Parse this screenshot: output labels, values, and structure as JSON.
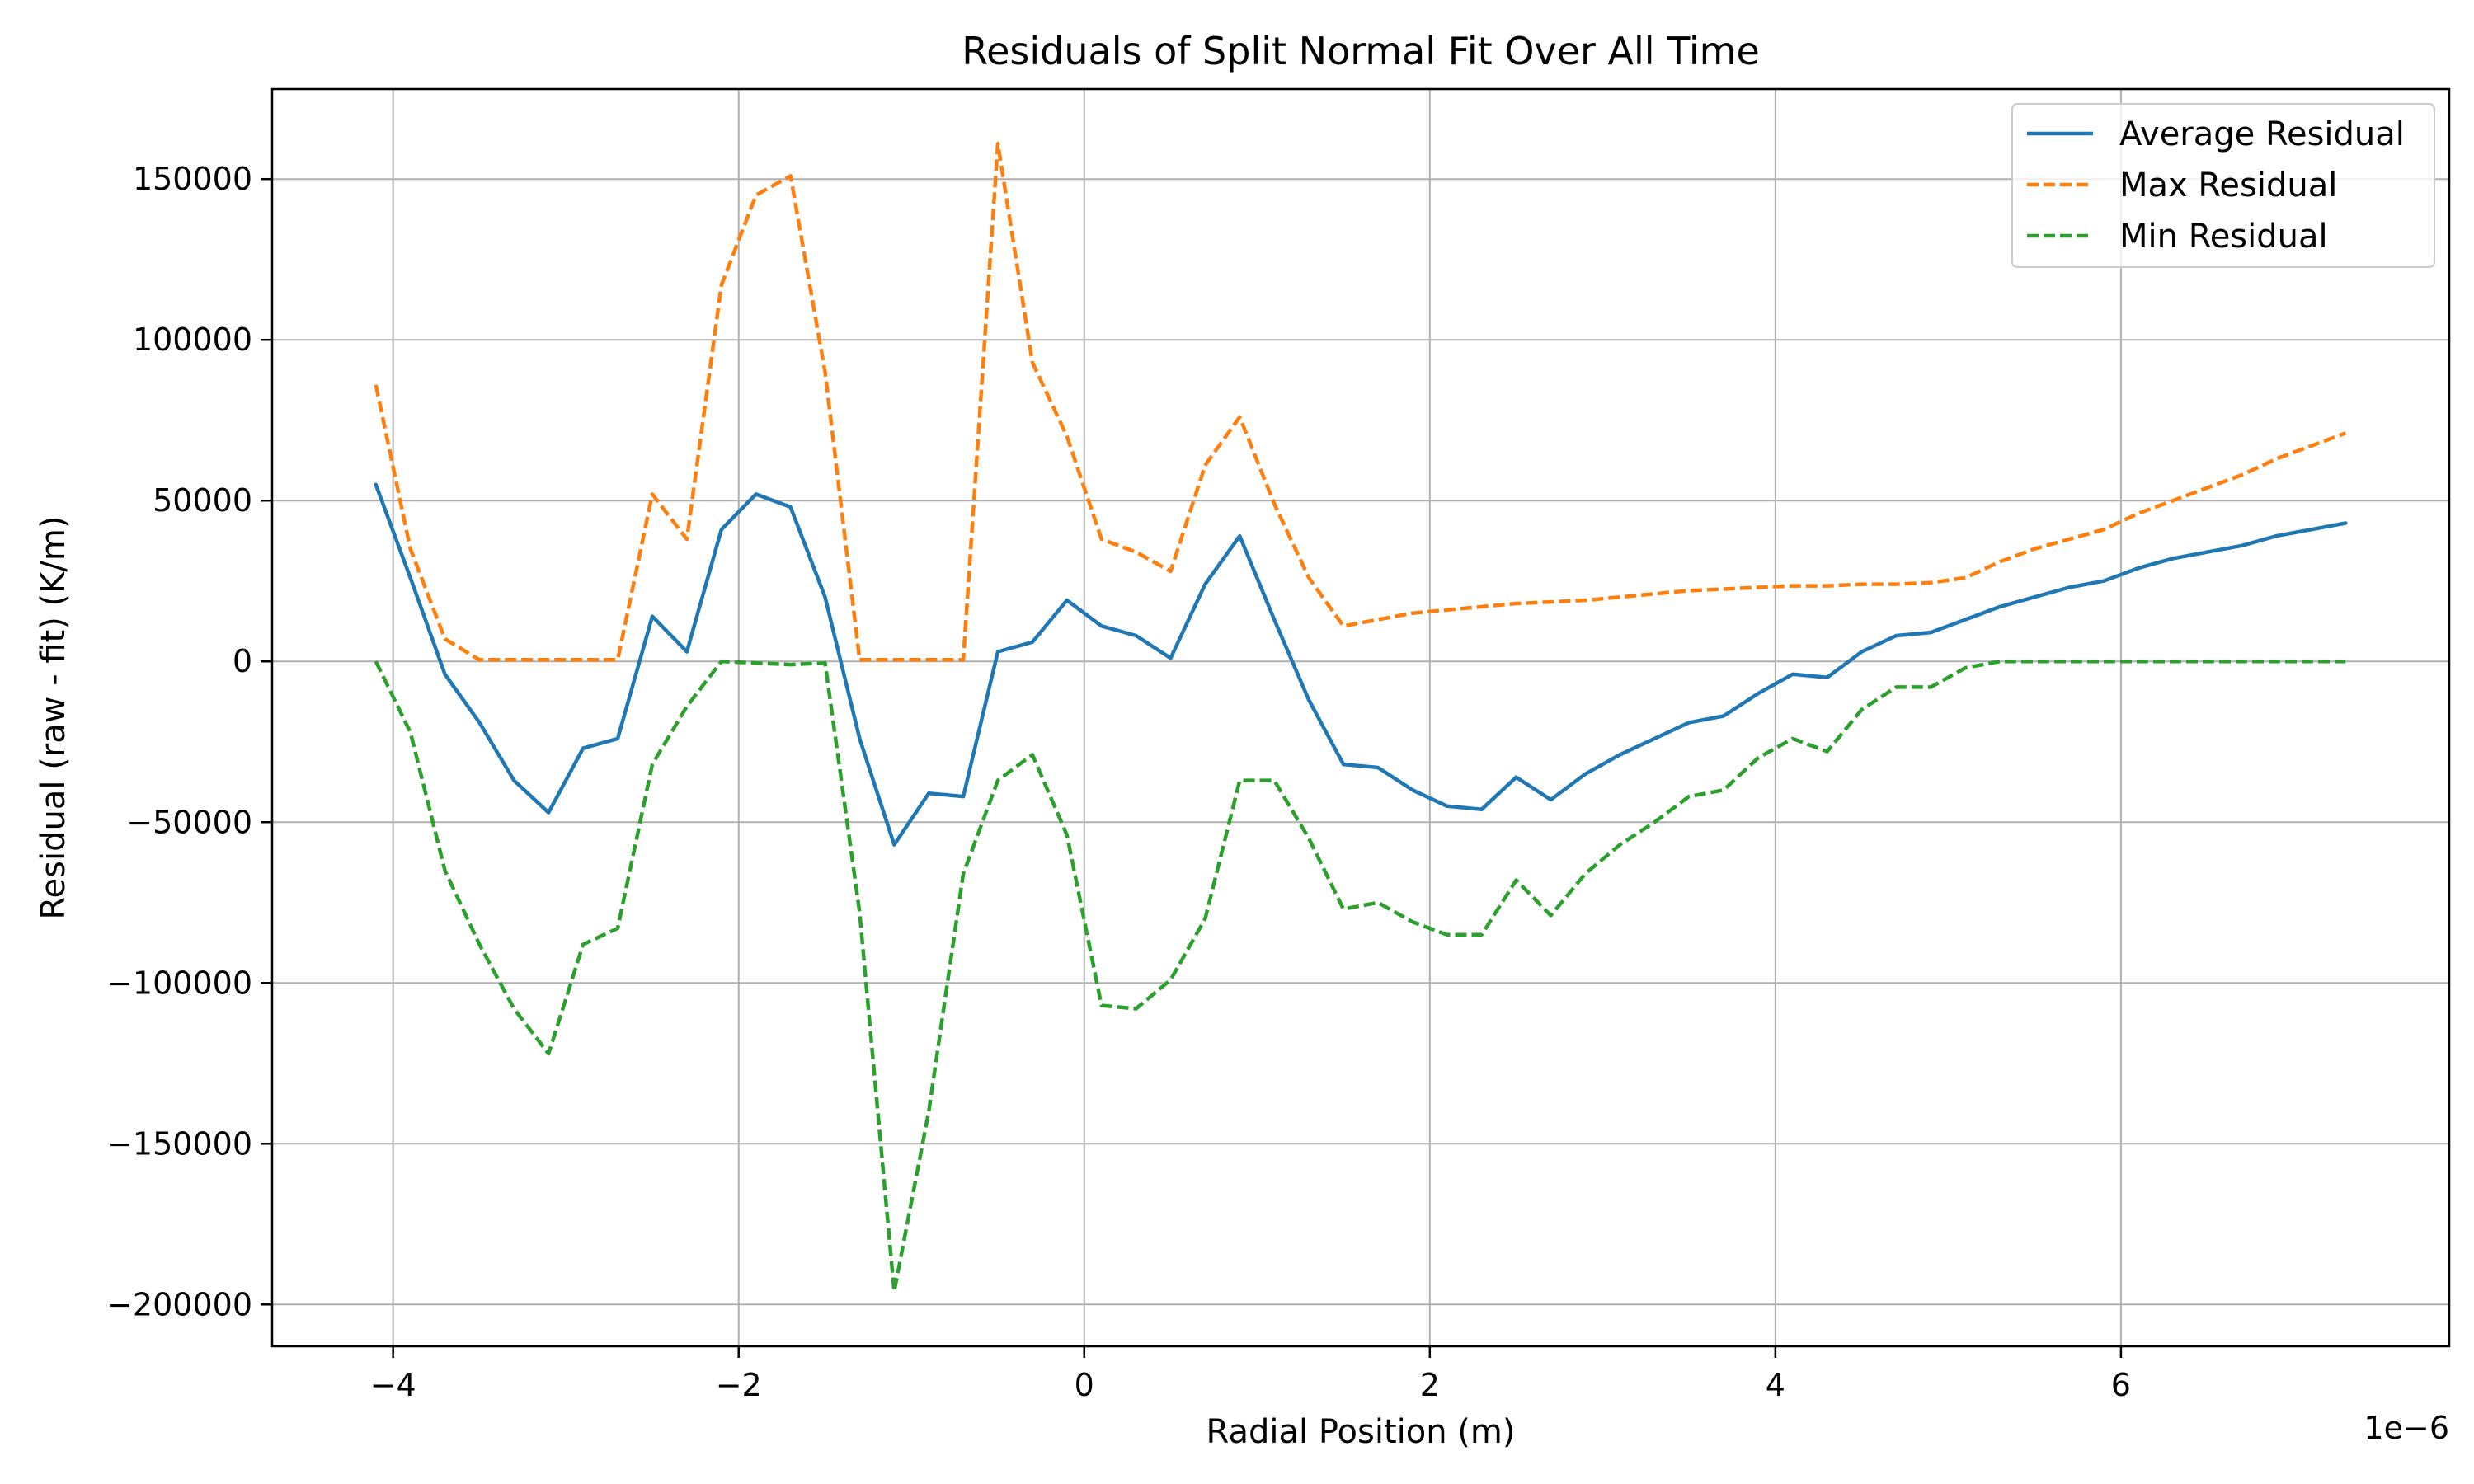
{
  "chart_data": {
    "type": "line",
    "title": "Residuals of Split Normal Fit Over All Time",
    "xlabel": "Radial Position (m)",
    "ylabel": "Residual (raw - fit) (K/m)",
    "x_offset_label": "1e−6",
    "xlim": [
      -4.7,
      7.9
    ],
    "ylim": [
      -213000,
      178000
    ],
    "xticks": [
      -4,
      -2,
      0,
      2,
      4,
      6
    ],
    "xtick_labels": [
      "−4",
      "−2",
      "0",
      "2",
      "4",
      "6"
    ],
    "yticks": [
      -200000,
      -150000,
      -100000,
      -50000,
      0,
      50000,
      100000,
      150000
    ],
    "ytick_labels": [
      "−200000",
      "−150000",
      "−100000",
      "−50000",
      "0",
      "50000",
      "100000",
      "150000"
    ],
    "grid": true,
    "legend_position": "top-right",
    "x": [
      -4.1,
      -3.9,
      -3.7,
      -3.5,
      -3.3,
      -3.1,
      -2.9,
      -2.7,
      -2.5,
      -2.3,
      -2.1,
      -1.9,
      -1.7,
      -1.5,
      -1.3,
      -1.1,
      -0.9,
      -0.7,
      -0.5,
      -0.3,
      -0.1,
      0.1,
      0.3,
      0.5,
      0.7,
      0.9,
      1.1,
      1.3,
      1.5,
      1.7,
      1.9,
      2.1,
      2.3,
      2.5,
      2.7,
      2.9,
      3.1,
      3.3,
      3.5,
      3.7,
      3.9,
      4.1,
      4.3,
      4.5,
      4.7,
      4.9,
      5.1,
      5.3,
      5.5,
      5.7,
      5.9,
      6.1,
      6.3,
      6.5,
      6.7,
      6.9,
      7.1,
      7.3
    ],
    "series": [
      {
        "name": "Average Residual",
        "color": "#1f77b4",
        "dashed": false,
        "values": [
          55000,
          26000,
          -4000,
          -19000,
          -37000,
          -47000,
          -27000,
          -24000,
          14000,
          3000,
          41000,
          52000,
          48000,
          20000,
          -24000,
          -57000,
          -41000,
          -42000,
          3000,
          6000,
          19000,
          11000,
          8000,
          1000,
          24000,
          39000,
          13000,
          -12000,
          -32000,
          -33000,
          -40000,
          -45000,
          -46000,
          -36000,
          -43000,
          -35000,
          -29000,
          -24000,
          -19000,
          -17000,
          -10000,
          -4000,
          -5000,
          3000,
          8000,
          9000,
          13000,
          17000,
          20000,
          23000,
          25000,
          29000,
          32000,
          34000,
          36000,
          39000,
          41000,
          43000
        ]
      },
      {
        "name": "Max Residual",
        "color": "#ff7f0e",
        "dashed": true,
        "values": [
          86000,
          35000,
          7000,
          500,
          500,
          500,
          500,
          500,
          52000,
          38000,
          117000,
          145000,
          151000,
          90000,
          500,
          500,
          500,
          500,
          161000,
          93000,
          70000,
          38000,
          34000,
          28000,
          61000,
          76000,
          49000,
          26000,
          11000,
          13000,
          15000,
          16000,
          17000,
          18000,
          18500,
          19000,
          20000,
          21000,
          22000,
          22500,
          23000,
          23500,
          23500,
          24000,
          24000,
          24500,
          26000,
          31000,
          35000,
          38000,
          41000,
          46000,
          50000,
          54000,
          58000,
          63000,
          67000,
          71000
        ]
      },
      {
        "name": "Min Residual",
        "color": "#2ca02c",
        "dashed": true,
        "values": [
          0,
          -22000,
          -65000,
          -88000,
          -108000,
          -122000,
          -88000,
          -83000,
          -32000,
          -14000,
          0,
          -500,
          -1000,
          -500,
          -78000,
          -196000,
          -140000,
          -66000,
          -37000,
          -29000,
          -54000,
          -107000,
          -108000,
          -99000,
          -80000,
          -37000,
          -37000,
          -55000,
          -77000,
          -75000,
          -81000,
          -85000,
          -85000,
          -68000,
          -79000,
          -66000,
          -57000,
          -50000,
          -42000,
          -40000,
          -30000,
          -24000,
          -28000,
          -15000,
          -8000,
          -8000,
          -2000,
          0,
          0,
          0,
          0,
          0,
          0,
          0,
          0,
          0,
          0,
          0
        ]
      }
    ]
  }
}
